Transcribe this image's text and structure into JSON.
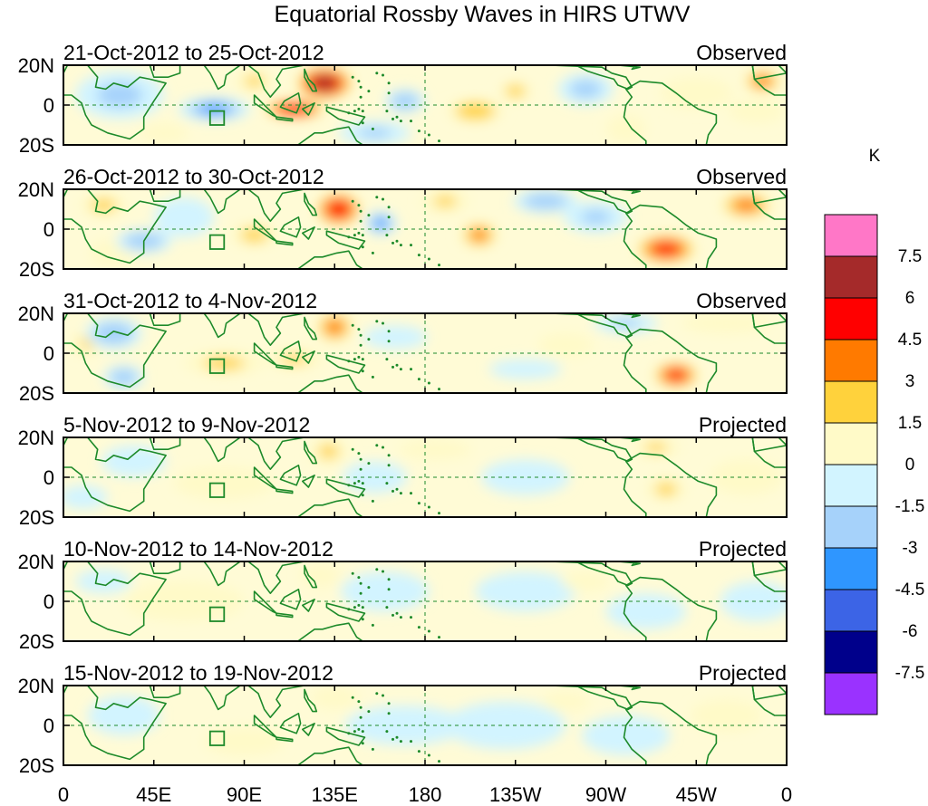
{
  "chart_data": {
    "type": "heatmap",
    "title": "Equatorial Rossby Waves in HIRS UTWV",
    "x_ticks": [
      "0",
      "45E",
      "90E",
      "135E",
      "180",
      "135W",
      "90W",
      "45W",
      "0"
    ],
    "y_ticks": [
      "20N",
      "0",
      "20S"
    ],
    "colorbar": {
      "unit": "K",
      "labels": [
        "7.5",
        "6",
        "4.5",
        "3",
        "1.5",
        "0",
        "-1.5",
        "-3",
        "-4.5",
        "-6",
        "-7.5"
      ],
      "colors": [
        "#ff77c7",
        "#a52a2a",
        "#ff0000",
        "#ff7a00",
        "#ffd23c",
        "#fffac8",
        "#d2f4ff",
        "#a6d2fa",
        "#2f96ff",
        "#3c64e6",
        "#00008b",
        "#9a32ff"
      ]
    },
    "panels": [
      {
        "date_range": "21-Oct-2012 to 25-Oct-2012",
        "status": "Observed",
        "anomalies": [
          {
            "lon": 130,
            "lat": 11,
            "rlon": 15,
            "rlat": 9,
            "v": 6.5
          },
          {
            "lon": 115,
            "lat": -2,
            "rlon": 16,
            "rlat": 5,
            "v": 6.2
          },
          {
            "lon": 170,
            "lat": 2,
            "rlon": 10,
            "rlat": 6,
            "v": -3.2
          },
          {
            "lon": -155,
            "lat": -3,
            "rlon": 14,
            "rlat": 6,
            "v": 3.2
          },
          {
            "lon": -135,
            "lat": 7,
            "rlon": 8,
            "rlat": 5,
            "v": 2.4
          },
          {
            "lon": 75,
            "lat": -2,
            "rlon": 18,
            "rlat": 6,
            "v": -3.3
          },
          {
            "lon": 28,
            "lat": 5,
            "rlon": 22,
            "rlat": 12,
            "v": -2.0
          },
          {
            "lon": 95,
            "lat": 12,
            "rlon": 10,
            "rlat": 6,
            "v": 1.8
          },
          {
            "lon": -100,
            "lat": 8,
            "rlon": 14,
            "rlat": 8,
            "v": -2.2
          },
          {
            "lon": -80,
            "lat": -12,
            "rlon": 10,
            "rlat": 7,
            "v": 1.6
          },
          {
            "lon": -45,
            "lat": 6,
            "rlon": 18,
            "rlat": 8,
            "v": 1.4
          },
          {
            "lon": -12,
            "lat": 12,
            "rlon": 10,
            "rlat": 6,
            "v": 3.6
          },
          {
            "lon": -15,
            "lat": -3,
            "rlon": 14,
            "rlat": 6,
            "v": 1.6
          },
          {
            "lon": 155,
            "lat": -14,
            "rlon": 18,
            "rlat": 6,
            "v": -1.8
          },
          {
            "lon": 50,
            "lat": -14,
            "rlon": 12,
            "rlat": 5,
            "v": 1.5
          }
        ]
      },
      {
        "date_range": "26-Oct-2012 to 30-Oct-2012",
        "status": "Observed",
        "anomalies": [
          {
            "lon": 137,
            "lat": 10,
            "rlon": 12,
            "rlat": 9,
            "v": 5.6
          },
          {
            "lon": -153,
            "lat": -3,
            "rlon": 10,
            "rlat": 7,
            "v": 3.3
          },
          {
            "lon": -60,
            "lat": -10,
            "rlon": 16,
            "rlat": 8,
            "v": 5.0
          },
          {
            "lon": -20,
            "lat": 12,
            "rlon": 14,
            "rlat": 7,
            "v": 3.6
          },
          {
            "lon": 158,
            "lat": 3,
            "rlon": 8,
            "rlat": 6,
            "v": -3.3
          },
          {
            "lon": 40,
            "lat": -6,
            "rlon": 14,
            "rlat": 6,
            "v": -3.2
          },
          {
            "lon": 95,
            "lat": -3,
            "rlon": 12,
            "rlat": 6,
            "v": 2.2
          },
          {
            "lon": -120,
            "lat": 14,
            "rlon": 16,
            "rlat": 6,
            "v": -3.0
          },
          {
            "lon": 20,
            "lat": 12,
            "rlon": 12,
            "rlat": 6,
            "v": 2.0
          },
          {
            "lon": 25,
            "lat": -12,
            "rlon": 12,
            "rlat": 7,
            "v": 1.6
          },
          {
            "lon": -170,
            "lat": 14,
            "rlon": 12,
            "rlat": 6,
            "v": 1.8
          },
          {
            "lon": -95,
            "lat": 6,
            "rlon": 16,
            "rlat": 8,
            "v": -1.8
          },
          {
            "lon": 60,
            "lat": 6,
            "rlon": 15,
            "rlat": 10,
            "v": -1.6
          }
        ]
      },
      {
        "date_range": "31-Oct-2012 to 4-Nov-2012",
        "status": "Observed",
        "anomalies": [
          {
            "lon": 135,
            "lat": 13,
            "rlon": 10,
            "rlat": 8,
            "v": 3.5
          },
          {
            "lon": -55,
            "lat": -11,
            "rlon": 12,
            "rlat": 7,
            "v": 5.0
          },
          {
            "lon": 25,
            "lat": 10,
            "rlon": 14,
            "rlat": 8,
            "v": -3.2
          },
          {
            "lon": 30,
            "lat": -12,
            "rlon": 10,
            "rlat": 6,
            "v": -3.0
          },
          {
            "lon": 12,
            "lat": 5,
            "rlon": 8,
            "rlat": 6,
            "v": 1.8
          },
          {
            "lon": 80,
            "lat": -5,
            "rlon": 20,
            "rlat": 6,
            "v": 2.0
          },
          {
            "lon": 115,
            "lat": -3,
            "rlon": 15,
            "rlat": 5,
            "v": 1.8
          },
          {
            "lon": -80,
            "lat": 15,
            "rlon": 16,
            "rlat": 5,
            "v": -1.8
          },
          {
            "lon": -130,
            "lat": -8,
            "rlon": 18,
            "rlat": 5,
            "v": -1.6
          },
          {
            "lon": -30,
            "lat": 15,
            "rlon": 22,
            "rlat": 5,
            "v": 1.6
          },
          {
            "lon": 165,
            "lat": 8,
            "rlon": 16,
            "rlat": 6,
            "v": -1.6
          },
          {
            "lon": -110,
            "lat": 4,
            "rlon": 14,
            "rlat": 6,
            "v": 1.5
          }
        ]
      },
      {
        "date_range": "5-Nov-2012 to 9-Nov-2012",
        "status": "Projected",
        "anomalies": [
          {
            "lon": 132,
            "lat": 13,
            "rlon": 10,
            "rlat": 7,
            "v": 1.9
          },
          {
            "lon": -60,
            "lat": -6,
            "rlon": 10,
            "rlat": 6,
            "v": 2.0
          },
          {
            "lon": -65,
            "lat": 15,
            "rlon": 12,
            "rlat": 5,
            "v": 1.8
          },
          {
            "lon": 35,
            "lat": 8,
            "rlon": 16,
            "rlat": 8,
            "v": -1.6
          },
          {
            "lon": 155,
            "lat": 0,
            "rlon": 16,
            "rlat": 8,
            "v": -0.6
          },
          {
            "lon": 80,
            "lat": -3,
            "rlon": 25,
            "rlat": 8,
            "v": 0.8
          },
          {
            "lon": -130,
            "lat": 0,
            "rlon": 22,
            "rlat": 9,
            "v": -0.5
          },
          {
            "lon": -20,
            "lat": 0,
            "rlon": 18,
            "rlat": 9,
            "v": 0.7
          },
          {
            "lon": 10,
            "lat": -10,
            "rlon": 12,
            "rlat": 6,
            "v": -0.7
          },
          {
            "lon": -175,
            "lat": 14,
            "rlon": 18,
            "rlat": 5,
            "v": 0.6
          }
        ]
      },
      {
        "date_range": "10-Nov-2012 to 14-Nov-2012",
        "status": "Projected",
        "anomalies": [
          {
            "lon": 128,
            "lat": 13,
            "rlon": 10,
            "rlat": 6,
            "v": 1.0
          },
          {
            "lon": 160,
            "lat": 5,
            "rlon": 22,
            "rlat": 10,
            "v": -0.8
          },
          {
            "lon": 60,
            "lat": 0,
            "rlon": 30,
            "rlat": 10,
            "v": 0.9
          },
          {
            "lon": -130,
            "lat": 5,
            "rlon": 25,
            "rlat": 10,
            "v": -0.6
          },
          {
            "lon": -70,
            "lat": -5,
            "rlon": 20,
            "rlat": 9,
            "v": -0.7
          },
          {
            "lon": -15,
            "lat": 0,
            "rlon": 18,
            "rlat": 10,
            "v": -0.8
          },
          {
            "lon": -100,
            "lat": 10,
            "rlon": 12,
            "rlat": 5,
            "v": 0.6
          },
          {
            "lon": 20,
            "lat": 10,
            "rlon": 14,
            "rlat": 6,
            "v": -0.6
          }
        ]
      },
      {
        "date_range": "15-Nov-2012 to 19-Nov-2012",
        "status": "Projected",
        "anomalies": [
          {
            "lon": 135,
            "lat": 14,
            "rlon": 12,
            "rlat": 6,
            "v": 0.9
          },
          {
            "lon": 170,
            "lat": 0,
            "rlon": 30,
            "rlat": 10,
            "v": -0.7
          },
          {
            "lon": 90,
            "lat": -8,
            "rlon": 20,
            "rlat": 7,
            "v": 0.8
          },
          {
            "lon": -140,
            "lat": 0,
            "rlon": 30,
            "rlat": 12,
            "v": -0.5
          },
          {
            "lon": -80,
            "lat": -5,
            "rlon": 22,
            "rlat": 10,
            "v": -0.6
          },
          {
            "lon": -30,
            "lat": 5,
            "rlon": 18,
            "rlat": 8,
            "v": 0.6
          },
          {
            "lon": 30,
            "lat": 5,
            "rlon": 18,
            "rlat": 10,
            "v": -0.6
          },
          {
            "lon": -110,
            "lat": 12,
            "rlon": 12,
            "rlat": 5,
            "v": 0.6
          }
        ]
      }
    ]
  }
}
